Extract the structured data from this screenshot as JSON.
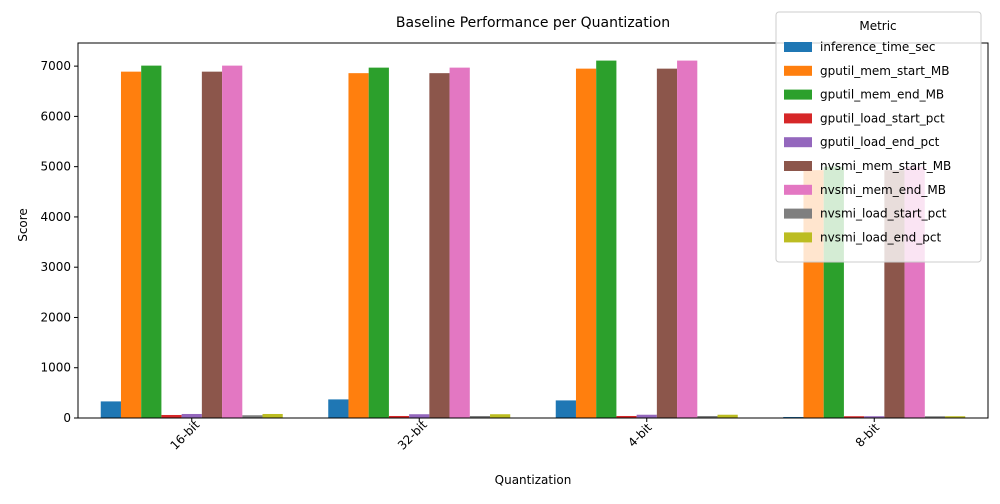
{
  "chart_data": {
    "type": "bar",
    "title": "Baseline Performance per Quantization",
    "xlabel": "Quantization",
    "ylabel": "Score",
    "ylim": [
      0,
      7460
    ],
    "yticks": [
      0,
      1000,
      2000,
      3000,
      4000,
      5000,
      6000,
      7000
    ],
    "grid": false,
    "legend_title": "Metric",
    "legend_position": "top-right",
    "categories": [
      "16-bit",
      "32-bit",
      "4-bit",
      "8-bit"
    ],
    "series": [
      {
        "name": "inference_time_sec",
        "color": "#1f77b4",
        "values": [
          330,
          370,
          350,
          20
        ]
      },
      {
        "name": "gputil_mem_start_MB",
        "color": "#ff7f0e",
        "values": [
          6890,
          6860,
          6950,
          4930
        ]
      },
      {
        "name": "gputil_mem_end_MB",
        "color": "#2ca02c",
        "values": [
          7010,
          6970,
          7110,
          5000
        ]
      },
      {
        "name": "gputil_load_start_pct",
        "color": "#d62728",
        "values": [
          60,
          40,
          40,
          35
        ]
      },
      {
        "name": "gputil_load_end_pct",
        "color": "#9467bd",
        "values": [
          80,
          75,
          65,
          35
        ]
      },
      {
        "name": "nvsmi_mem_start_MB",
        "color": "#8c564b",
        "values": [
          6890,
          6860,
          6950,
          4930
        ]
      },
      {
        "name": "nvsmi_mem_end_MB",
        "color": "#e377c2",
        "values": [
          7010,
          6970,
          7110,
          5000
        ]
      },
      {
        "name": "nvsmi_load_start_pct",
        "color": "#7f7f7f",
        "values": [
          55,
          40,
          40,
          35
        ]
      },
      {
        "name": "nvsmi_load_end_pct",
        "color": "#bcbd22",
        "values": [
          80,
          75,
          65,
          35
        ]
      }
    ]
  }
}
